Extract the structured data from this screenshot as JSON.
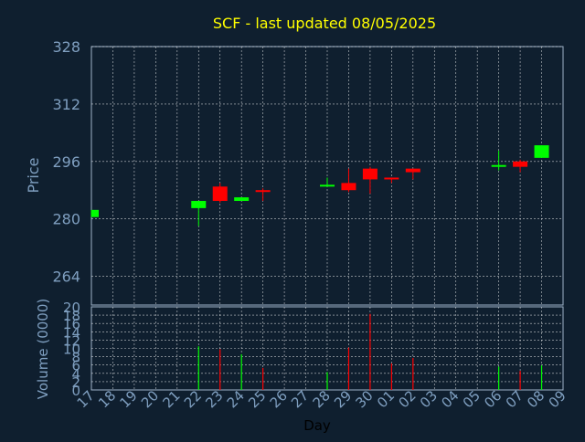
{
  "chart_data": {
    "type": "candlestick",
    "title": "SCF - last updated 08/05/2025",
    "xlabel": "Day",
    "price_axis": {
      "label": "Price",
      "ylim": [
        256,
        328
      ],
      "ticks": [
        328,
        312,
        296,
        280,
        264
      ]
    },
    "volume_axis": {
      "label": "Volume (0000)",
      "ylim": [
        0,
        20
      ],
      "ticks": [
        0,
        2,
        4,
        6,
        8,
        10,
        12,
        14,
        16,
        18,
        20
      ]
    },
    "x_ticks": [
      "17",
      "18",
      "19",
      "20",
      "21",
      "22",
      "23",
      "24",
      "25",
      "26",
      "27",
      "28",
      "29",
      "30",
      "01",
      "02",
      "03",
      "04",
      "05",
      "06",
      "07",
      "08",
      "09"
    ],
    "grid": true,
    "colors": {
      "up": "#00ff00",
      "down": "#ff0000",
      "title": "#ffff00",
      "axis_text": "#7f9fc0",
      "background": "#0f1f2f",
      "grid": "#ffffff"
    },
    "candles": [
      {
        "day": "17",
        "open": 280.5,
        "high": 282.5,
        "low": 280.5,
        "close": 282.5
      },
      {
        "day": "22",
        "open": 283.0,
        "high": 285.0,
        "low": 278.0,
        "close": 285.0
      },
      {
        "day": "23",
        "open": 289.0,
        "high": 290.0,
        "low": 284.5,
        "close": 285.0
      },
      {
        "day": "24",
        "open": 285.0,
        "high": 286.0,
        "low": 285.0,
        "close": 286.0
      },
      {
        "day": "25",
        "open": 288.0,
        "high": 288.5,
        "low": 285.0,
        "close": 287.5
      },
      {
        "day": "28",
        "open": 289.0,
        "high": 291.5,
        "low": 289.0,
        "close": 289.5
      },
      {
        "day": "29",
        "open": 290.0,
        "high": 294.0,
        "low": 287.5,
        "close": 288.0
      },
      {
        "day": "30",
        "open": 294.0,
        "high": 294.5,
        "low": 287.0,
        "close": 291.0
      },
      {
        "day": "01",
        "open": 291.5,
        "high": 291.5,
        "low": 290.0,
        "close": 291.0
      },
      {
        "day": "02",
        "open": 294.0,
        "high": 294.0,
        "low": 291.0,
        "close": 293.0
      },
      {
        "day": "06",
        "open": 294.5,
        "high": 299.0,
        "low": 293.5,
        "close": 295.0
      },
      {
        "day": "07",
        "open": 296.0,
        "high": 296.5,
        "low": 293.0,
        "close": 294.5
      },
      {
        "day": "08",
        "open": 297.0,
        "high": 300.5,
        "low": 297.0,
        "close": 300.5
      }
    ],
    "volume": [
      {
        "day": "22",
        "value": 10.5,
        "dir": "up"
      },
      {
        "day": "23",
        "value": 9.8,
        "dir": "down"
      },
      {
        "day": "24",
        "value": 8.6,
        "dir": "up"
      },
      {
        "day": "25",
        "value": 5.3,
        "dir": "down"
      },
      {
        "day": "28",
        "value": 4.3,
        "dir": "up"
      },
      {
        "day": "29",
        "value": 10.2,
        "dir": "down"
      },
      {
        "day": "30",
        "value": 18.3,
        "dir": "down"
      },
      {
        "day": "01",
        "value": 6.4,
        "dir": "down"
      },
      {
        "day": "02",
        "value": 7.7,
        "dir": "down"
      },
      {
        "day": "06",
        "value": 5.6,
        "dir": "up"
      },
      {
        "day": "07",
        "value": 4.6,
        "dir": "down"
      },
      {
        "day": "08",
        "value": 5.9,
        "dir": "up"
      }
    ]
  }
}
